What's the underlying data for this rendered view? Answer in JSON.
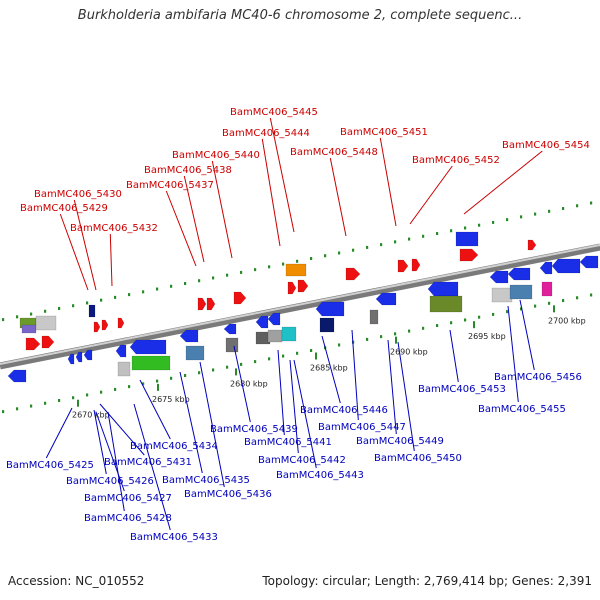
{
  "title": "Burkholderia ambifaria MC40-6 chromosome 2, complete sequenc...",
  "footer": {
    "accession": "Accession: NC_010552",
    "summary": "Topology: circular; Length: 2,769,414 bp; Genes: 2,391"
  },
  "colors": {
    "forward_label": "#cc0000",
    "reverse_label": "#0000bb",
    "backbone": "#888888",
    "tick_dots": "#2a8a2a"
  },
  "scale_ticks": [
    "2670 kbp",
    "2675 kbp",
    "2680 kbp",
    "2685 kbp",
    "2690 kbp",
    "2695 kbp",
    "2700 kbp"
  ],
  "forward_genes": [
    "BamMC406_5445",
    "BamMC406_5444",
    "BamMC406_5451",
    "BamMC406_5440",
    "BamMC406_5448",
    "BamMC406_5454",
    "BamMC406_5438",
    "BamMC406_5452",
    "BamMC406_5437",
    "BamMC406_5430",
    "BamMC406_5429",
    "BamMC406_5432"
  ],
  "reverse_genes": [
    "BamMC406_5453",
    "BamMC406_5456",
    "BamMC406_5455",
    "BamMC406_5446",
    "BamMC406_5439",
    "BamMC406_5447",
    "BamMC406_5434",
    "BamMC406_5441",
    "BamMC406_5449",
    "BamMC406_5442",
    "BamMC406_5450",
    "BamMC406_5425",
    "BamMC406_5431",
    "BamMC406_5443",
    "BamMC406_5426",
    "BamMC406_5435",
    "BamMC406_5427",
    "BamMC406_5436",
    "BamMC406_5428",
    "BamMC406_5433"
  ]
}
